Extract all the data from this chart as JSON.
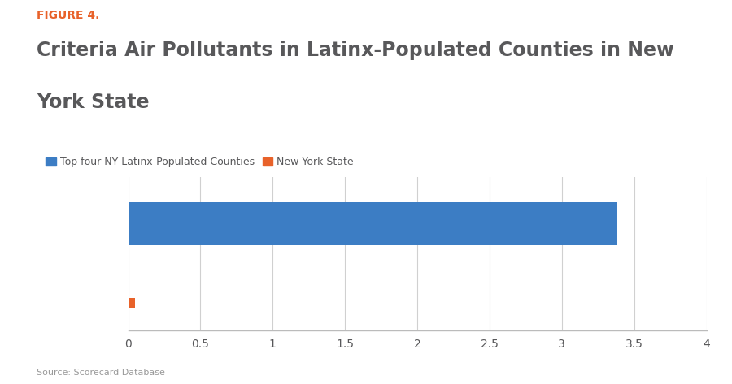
{
  "figure_label": "FIGURE 4.",
  "title_line1": "Criteria Air Pollutants in Latinx-Populated Counties in New",
  "title_line2": "York State",
  "legend_labels": [
    "Top four NY Latinx-Populated Counties",
    "New York State"
  ],
  "legend_colors": [
    "#3c7dc4",
    "#e8622a"
  ],
  "bar_values": [
    3.38,
    0.05
  ],
  "bar_colors": [
    "#3c7dc4",
    "#e8622a"
  ],
  "xlim": [
    0,
    4
  ],
  "xticks": [
    0,
    0.5,
    1,
    1.5,
    2,
    2.5,
    3,
    3.5,
    4
  ],
  "xtick_labels": [
    "0",
    "0.5",
    "1",
    "1.5",
    "2",
    "2.5",
    "3",
    "3.5",
    "4"
  ],
  "source_text": "Source: Scorecard Database",
  "background_color": "#ffffff",
  "figure_label_color": "#e8622a",
  "title_color": "#58585a",
  "grid_color": "#d0d0d0",
  "tick_label_color": "#58585a",
  "source_color": "#999999",
  "ylabel_color": "#3a3a3a"
}
